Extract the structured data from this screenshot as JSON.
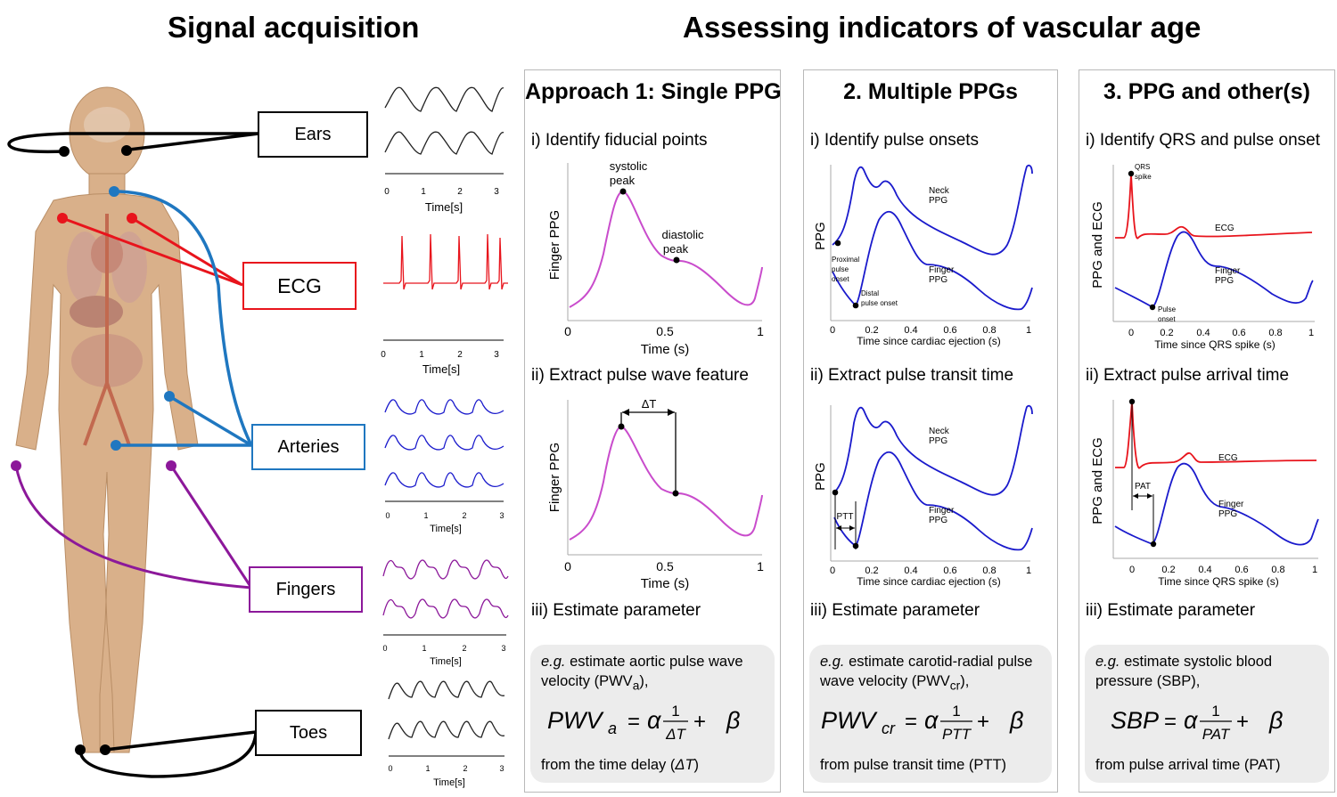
{
  "titles": {
    "left": "Signal acquisition",
    "right": "Assessing indicators of vascular age"
  },
  "sites": {
    "ears": "Ears",
    "ecg": "ECG",
    "arteries": "Arteries",
    "fingers": "Fingers",
    "toes": "Toes"
  },
  "colors": {
    "ecg": "#e8141c",
    "arteries": "#1f77c0",
    "fingers": "#8c189a",
    "ppg_line": "#c94ccc",
    "wave_blue": "#1a1acc",
    "wave_red": "#e8141c",
    "body": "#dcb48c"
  },
  "signal_axes": {
    "ears": {
      "ticks": [
        "0",
        "1",
        "2",
        "3"
      ],
      "xlabel": "Time[s]"
    },
    "ecg": {
      "ticks": [
        "0",
        "1",
        "2",
        "3"
      ],
      "xlabel": "Time[s]"
    },
    "arteries": {
      "ticks": [
        "0",
        "1",
        "2",
        "3"
      ],
      "xlabel": "Time[s]"
    },
    "fingers": {
      "ticks": [
        "0",
        "1",
        "2",
        "3"
      ],
      "xlabel": "Time[s]"
    },
    "toes": {
      "ticks": [
        "0",
        "1",
        "2",
        "3"
      ],
      "xlabel": "Time[s]"
    }
  },
  "approach1": {
    "title": "Approach 1: Single PPG",
    "step1": "i) Identify fiducial points",
    "step2": "ii) Extract pulse wave feature",
    "step3": "iii) Estimate parameter",
    "graph1": {
      "ylabel": "Finger PPG",
      "xlabel": "Time (s)",
      "ticks": [
        "0",
        "0.5",
        "1"
      ],
      "ann_systolic_1": "systolic",
      "ann_systolic_2": "peak",
      "ann_diastolic_1": "diastolic",
      "ann_diastolic_2": "peak"
    },
    "graph2": {
      "ylabel": "Finger PPG",
      "xlabel": "Time (s)",
      "ticks": [
        "0",
        "0.5",
        "1"
      ],
      "ann_delta": "ΔT"
    },
    "desc_em": "e.g.",
    "desc_text": " estimate aortic pulse wave velocity (PWV",
    "desc_sub": "a",
    "desc_end": "),",
    "from": "from the time delay (",
    "from_em": "ΔT",
    "from_end": ")",
    "eq": {
      "lhs": "PWV",
      "lhs_sub": "a",
      "num": "1",
      "den": "ΔT"
    }
  },
  "approach2": {
    "title": "2. Multiple PPGs",
    "step1": "i) Identify pulse onsets",
    "step2": "ii) Extract pulse transit time",
    "step3": "iii) Estimate parameter",
    "graph1": {
      "ylabel": "PPG",
      "xlabel": "Time since cardiac ejection (s)",
      "ticks": [
        "0",
        "0.2",
        "0.4",
        "0.6",
        "0.8",
        "1"
      ],
      "neck_1": "Neck",
      "neck_2": "PPG",
      "finger_1": "Finger",
      "finger_2": "PPG",
      "prox_1": "Proximal",
      "prox_2": "pulse",
      "prox_3": "onset",
      "dist_1": "Distal",
      "dist_2": "pulse onset"
    },
    "graph2": {
      "ylabel": "PPG",
      "xlabel": "Time since cardiac ejection (s)",
      "ticks": [
        "0",
        "0.2",
        "0.4",
        "0.6",
        "0.8",
        "1"
      ],
      "neck_1": "Neck",
      "neck_2": "PPG",
      "finger_1": "Finger",
      "finger_2": "PPG",
      "ptt": "PTT"
    },
    "desc_em": "e.g.",
    "desc_text": " estimate carotid-radial pulse wave velocity (PWV",
    "desc_sub": "cr",
    "desc_end": "),",
    "from": "from pulse transit time (PTT)",
    "eq": {
      "lhs": "PWV",
      "lhs_sub": "cr",
      "num": "1",
      "den": "PTT"
    }
  },
  "approach3": {
    "title": "3. PPG and other(s)",
    "step1": "i) Identify QRS and pulse onset",
    "step2": "ii) Extract pulse arrival time",
    "step3": "iii) Estimate parameter",
    "graph1": {
      "ylabel": "PPG and ECG",
      "xlabel": "Time since QRS spike (s)",
      "ticks": [
        "0",
        "0.2",
        "0.4",
        "0.6",
        "0.8",
        "1"
      ],
      "qrs_1": "QRS",
      "qrs_2": "spike",
      "ecg": "ECG",
      "finger_1": "Finger",
      "finger_2": "PPG",
      "pulse_1": "Pulse",
      "pulse_2": "onset"
    },
    "graph2": {
      "ylabel": "PPG and ECG",
      "xlabel": "Time since QRS spike (s)",
      "ticks": [
        "0",
        "0.2",
        "0.4",
        "0.6",
        "0.8",
        "1"
      ],
      "ecg": "ECG",
      "finger_1": "Finger",
      "finger_2": "PPG",
      "pat": "PAT"
    },
    "desc_em": "e.g.",
    "desc_text": " estimate systolic blood pressure (SBP),",
    "from": "from pulse arrival time (PAT)",
    "eq": {
      "lhs": "SBP",
      "num": "1",
      "den": "PAT"
    }
  },
  "eq_common": {
    "equals": "=",
    "alpha": "α",
    "plus": "+",
    "beta": "β"
  }
}
